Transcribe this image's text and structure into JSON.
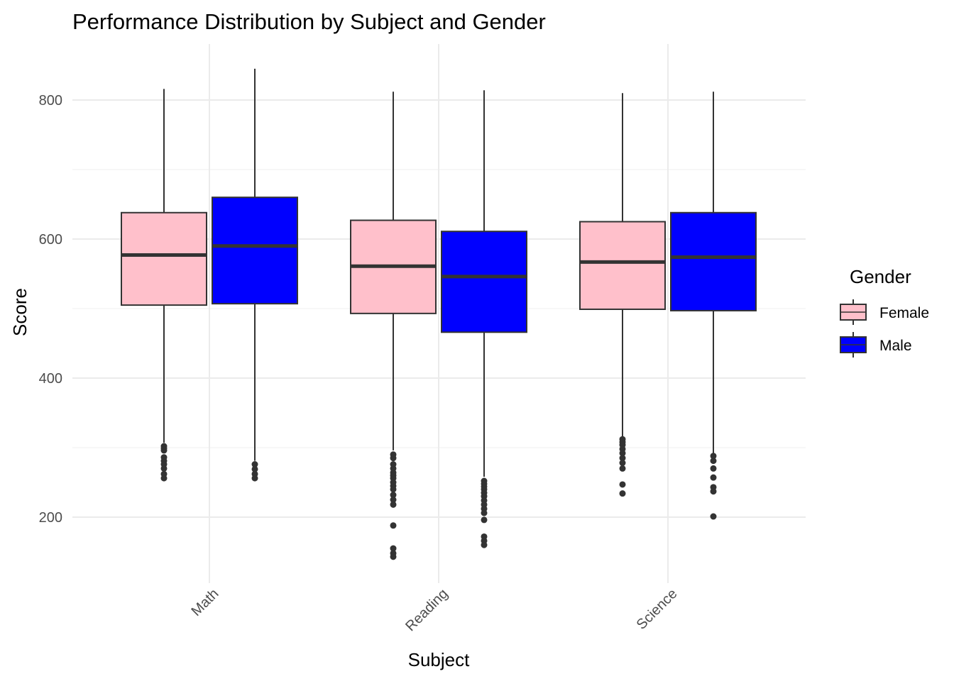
{
  "chart_data": {
    "type": "boxplot",
    "title": "Performance Distribution by Subject and Gender",
    "xlabel": "Subject",
    "ylabel": "Score",
    "categories": [
      "Math",
      "Reading",
      "Science"
    ],
    "ylim": [
      110,
      880
    ],
    "yticks": [
      200,
      400,
      600,
      800
    ],
    "grid": true,
    "legend": {
      "title": "Gender",
      "position": "right",
      "entries": [
        "Female",
        "Male"
      ]
    },
    "series": [
      {
        "name": "Female",
        "color": "#ffc0cb",
        "boxes": [
          {
            "category": "Math",
            "lower_whisker": 307,
            "q1": 505,
            "median": 577,
            "q3": 638,
            "upper_whisker": 816,
            "outliers": [
              302,
              299,
              296,
              286,
              281,
              276,
              270,
              262,
              256
            ]
          },
          {
            "category": "Reading",
            "lower_whisker": 296,
            "q1": 493,
            "median": 561,
            "q3": 627,
            "upper_whisker": 812,
            "outliers": [
              290,
              285,
              276,
              270,
              264,
              260,
              256,
              250,
              245,
              240,
              232,
              225,
              218,
              188,
              155,
              148,
              143
            ]
          },
          {
            "category": "Science",
            "lower_whisker": 316,
            "q1": 499,
            "median": 567,
            "q3": 625,
            "upper_whisker": 810,
            "outliers": [
              312,
              308,
              304,
              298,
              292,
              285,
              278,
              270,
              247,
              234
            ]
          }
        ]
      },
      {
        "name": "Male",
        "color": "#0000ff",
        "boxes": [
          {
            "category": "Math",
            "lower_whisker": 281,
            "q1": 507,
            "median": 590,
            "q3": 660,
            "upper_whisker": 845,
            "outliers": [
              276,
              269,
              262,
              256
            ]
          },
          {
            "category": "Reading",
            "lower_whisker": 258,
            "q1": 466,
            "median": 546,
            "q3": 611,
            "upper_whisker": 814,
            "outliers": [
              252,
              248,
              244,
              240,
              235,
              230,
              224,
              218,
              212,
              206,
              196,
              172,
              166,
              160
            ]
          },
          {
            "category": "Science",
            "lower_whisker": 292,
            "q1": 497,
            "median": 574,
            "q3": 638,
            "upper_whisker": 812,
            "outliers": [
              288,
              281,
              270,
              257,
              243,
              237,
              201
            ]
          }
        ]
      }
    ]
  }
}
